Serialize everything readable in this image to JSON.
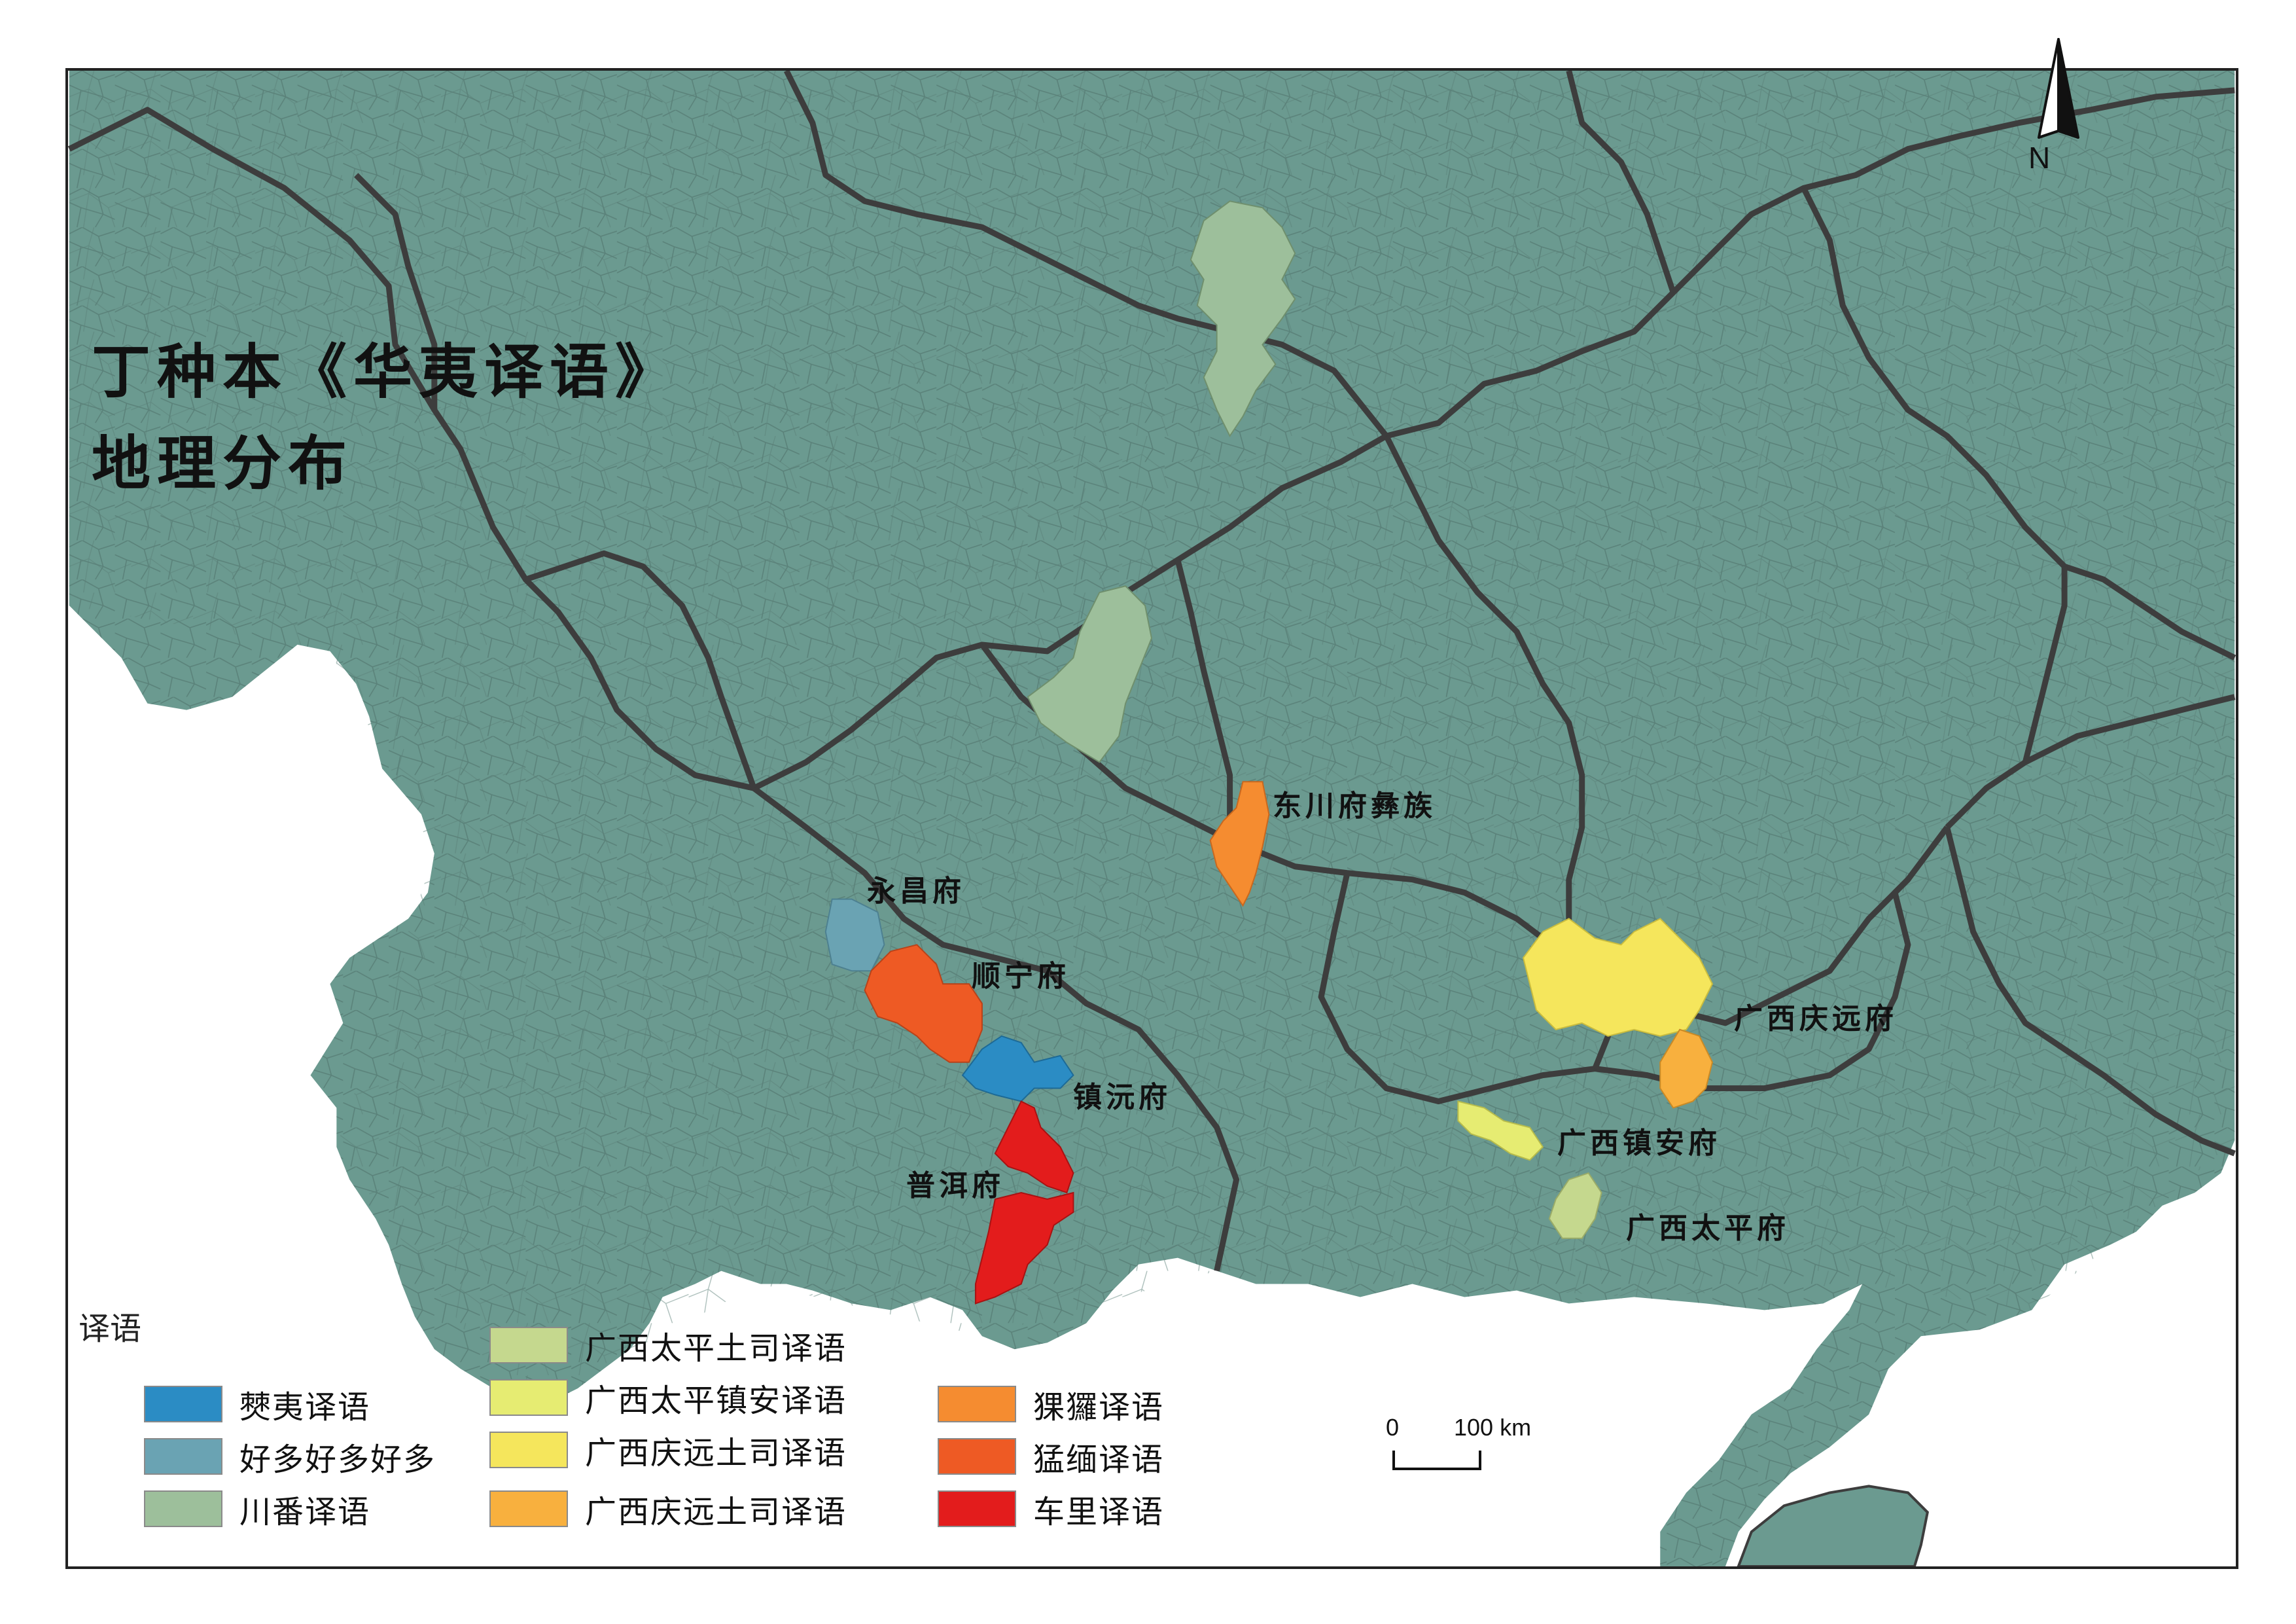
{
  "title": {
    "line1": "丁种本《华夷译语》",
    "line2": "地理分布"
  },
  "colors": {
    "land": "#6b9a90",
    "county_border": "#4f6f68",
    "province_border": "#3d3d3d",
    "outside": "#ffffff"
  },
  "place_labels": {
    "dongchuan": "东川府彝族",
    "yongchang": "永昌府",
    "shunning": "顺宁府",
    "zhenyuan": "镇沅府",
    "puer": "普洱府",
    "qingyuan": "广西庆远府",
    "zhenan": "广西镇安府",
    "taiping": "广西太平府"
  },
  "north_arrow": {
    "letter": "N",
    "icon": "north-arrow-icon"
  },
  "scale_bar": {
    "start": "0",
    "end": "100 km"
  },
  "legend": {
    "title": "译语",
    "items": [
      {
        "label": "僰夷译语",
        "color": "#2b8cc4"
      },
      {
        "label": "好多好多好多",
        "color": "#6aa3b3"
      },
      {
        "label": "川番译语",
        "color": "#9dbf9b"
      },
      {
        "label": "广西太平土司译语",
        "color": "#c5d88e"
      },
      {
        "label": "广西太平镇安译语",
        "color": "#e6ec72"
      },
      {
        "label": "广西庆远土司译语",
        "color": "#f5e65c"
      },
      {
        "label": "广西庆远土司译语",
        "color": "#f8b03e"
      },
      {
        "label": "猓玀译语",
        "color": "#f58c30"
      },
      {
        "label": "猛缅译语",
        "color": "#ee5a24"
      },
      {
        "label": "车里译语",
        "color": "#e31c1c"
      }
    ]
  }
}
